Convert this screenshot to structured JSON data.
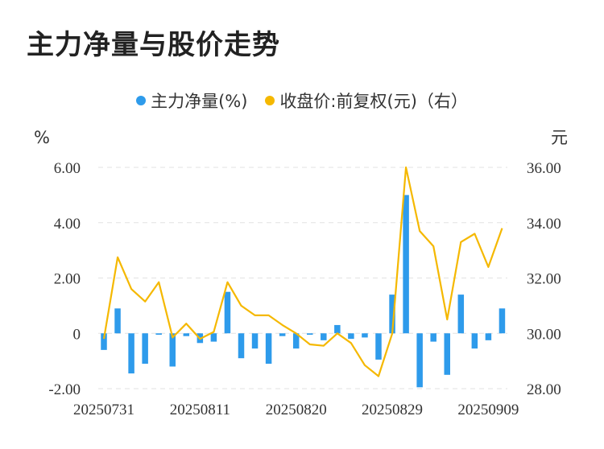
{
  "title": "主力净量与股价走势",
  "colors": {
    "bar": "#2E9BEB",
    "line": "#F5B800",
    "grid": "#E2E2E2",
    "text": "#333333"
  },
  "chart_data": {
    "type": "bar+line",
    "legend": [
      {
        "label": "主力净量(%)",
        "color": "#2E9BEB"
      },
      {
        "label": "收盘价:前复权(元)（右）",
        "color": "#F5B800"
      }
    ],
    "left_unit": "%",
    "right_unit": "元",
    "ylim_left": [
      -2,
      6
    ],
    "ylim_right": [
      28,
      36
    ],
    "left_ticks": [
      "6.00",
      "4.00",
      "2.00",
      "0",
      "-2.00"
    ],
    "right_ticks": [
      "36.00",
      "34.00",
      "32.00",
      "30.00",
      "28.00"
    ],
    "x_tick_labels": [
      "20250731",
      "20250811",
      "20250820",
      "20250829",
      "20250909"
    ],
    "x_tick_indices": [
      0,
      7,
      14,
      21,
      28
    ],
    "series": [
      {
        "name": "主力净量(%)",
        "type": "bar",
        "values": [
          -0.6,
          0.9,
          -1.45,
          -1.1,
          -0.05,
          -1.2,
          -0.1,
          -0.35,
          -0.3,
          1.5,
          -0.9,
          -0.55,
          -1.1,
          -0.1,
          -0.55,
          -0.05,
          -0.25,
          0.3,
          -0.2,
          -0.15,
          -0.95,
          1.4,
          5.0,
          -1.95,
          -0.3,
          -1.5,
          1.4,
          -0.55,
          -0.25,
          0.9
        ]
      },
      {
        "name": "收盘价:前复权(元)（右）",
        "type": "line",
        "values": [
          29.8,
          32.75,
          31.6,
          31.15,
          31.85,
          29.85,
          30.35,
          29.8,
          30.05,
          31.85,
          31.0,
          30.65,
          30.65,
          30.3,
          30.0,
          29.6,
          29.55,
          30.0,
          29.65,
          28.85,
          28.45,
          30.0,
          36.0,
          33.7,
          33.15,
          30.5,
          33.3,
          33.6,
          32.4,
          33.8
        ]
      }
    ]
  }
}
